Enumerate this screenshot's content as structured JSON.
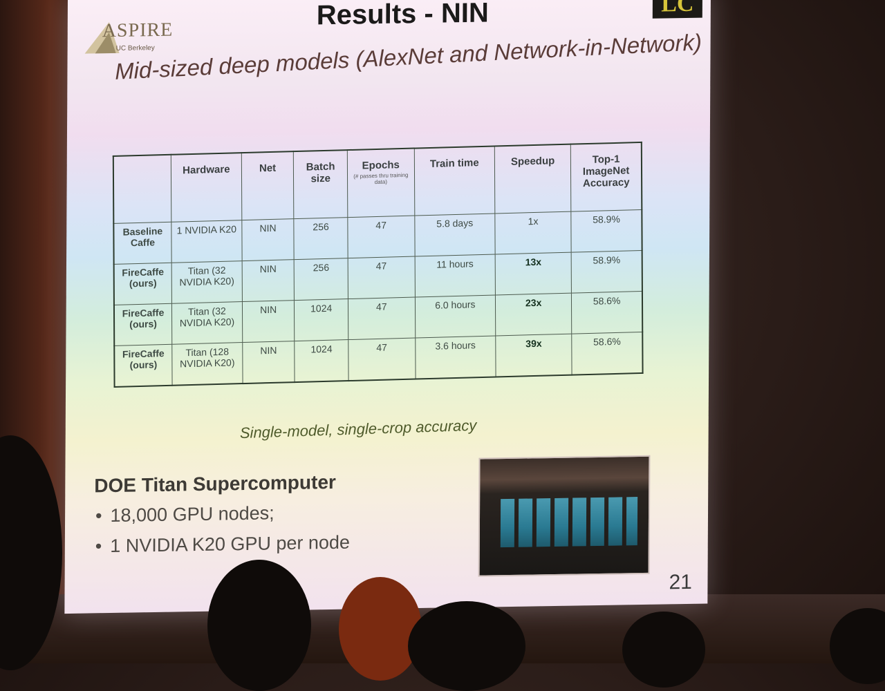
{
  "slide": {
    "title": "Results - NIN",
    "subtitle": "Mid-sized deep models (AlexNet and Network-in-Network)",
    "logo_left_word": "ASPIRE",
    "logo_left_sub": "UC Berkeley",
    "logo_right": "LC",
    "page_number": "21"
  },
  "table": {
    "headers": [
      {
        "label": ""
      },
      {
        "label": "Hardware"
      },
      {
        "label": "Net"
      },
      {
        "label": "Batch size"
      },
      {
        "label": "Epochs",
        "note": "(# passes thru training data)"
      },
      {
        "label": "Train time"
      },
      {
        "label": "Speedup"
      },
      {
        "label": "Top-1 ImageNet Accuracy"
      }
    ],
    "rows": [
      {
        "label": "Baseline Caffe",
        "hardware": "1 NVIDIA K20",
        "net": "NIN",
        "batch": "256",
        "epochs": "47",
        "time": "5.8 days",
        "speedup": "1x",
        "accuracy": "58.9%"
      },
      {
        "label": "FireCaffe (ours)",
        "hardware": "Titan (32 NVIDIA K20)",
        "net": "NIN",
        "batch": "256",
        "epochs": "47",
        "time": "11 hours",
        "speedup": "13x",
        "accuracy": "58.9%"
      },
      {
        "label": "FireCaffe (ours)",
        "hardware": "Titan (32 NVIDIA K20)",
        "net": "NIN",
        "batch": "1024",
        "epochs": "47",
        "time": "6.0 hours",
        "speedup": "23x",
        "accuracy": "58.6%"
      },
      {
        "label": "FireCaffe (ours)",
        "hardware": "Titan (128 NVIDIA K20)",
        "net": "NIN",
        "batch": "1024",
        "epochs": "47",
        "time": "3.6 hours",
        "speedup": "39x",
        "accuracy": "58.6%"
      }
    ]
  },
  "caption": "Single-model, single-crop accuracy",
  "doe": {
    "heading": "DOE Titan Supercomputer",
    "bullets": [
      "18,000 GPU nodes;",
      "1 NVIDIA K20 GPU per node"
    ]
  },
  "colors": {
    "room": "#2a1c18",
    "table_border": "#2b3a2c",
    "title": "#1b1a1a",
    "lc_logo_bg": "#1c1a16",
    "lc_logo_fg": "#d8c53a"
  }
}
